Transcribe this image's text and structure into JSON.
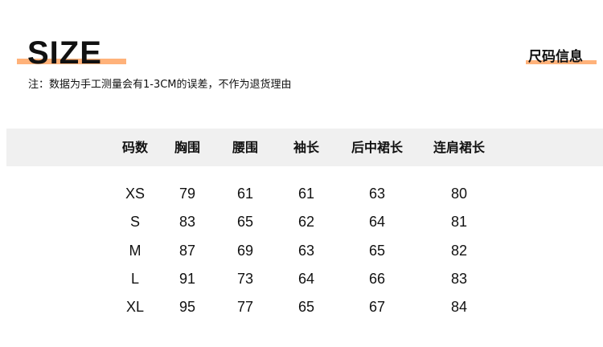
{
  "title": "SIZE",
  "section_title": "尺码信息",
  "note": "注：数据为手工测量会有1-3CM的误差，不作为退货理由",
  "accent_color": "#ffb27a",
  "table": {
    "headers": [
      "码数",
      "胸围",
      "腰围",
      "袖长",
      "后中裙长",
      "连肩裙长"
    ],
    "rows": [
      [
        "XS",
        "79",
        "61",
        "61",
        "63",
        "80"
      ],
      [
        "S",
        "83",
        "65",
        "62",
        "64",
        "81"
      ],
      [
        "M",
        "87",
        "69",
        "63",
        "65",
        "82"
      ],
      [
        "L",
        "91",
        "73",
        "64",
        "66",
        "83"
      ],
      [
        "XL",
        "95",
        "77",
        "65",
        "67",
        "84"
      ]
    ]
  }
}
